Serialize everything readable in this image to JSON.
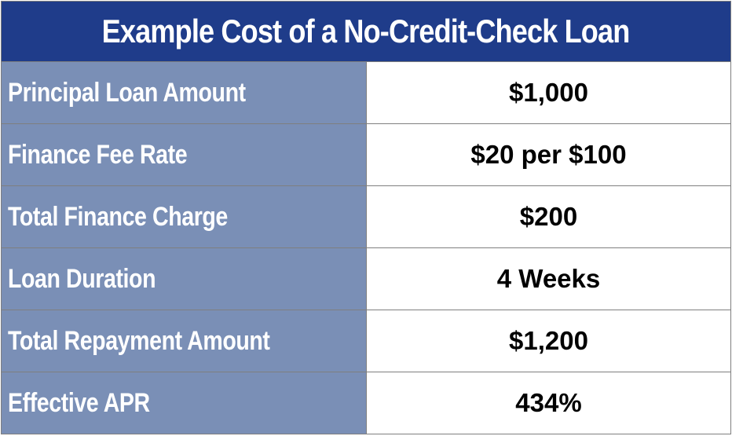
{
  "title": "Example Cost of a No-Credit-Check Loan",
  "rows": [
    {
      "label": "Principal Loan Amount",
      "value": "$1,000"
    },
    {
      "label": "Finance Fee Rate",
      "value": "$20 per $100"
    },
    {
      "label": "Total Finance Charge",
      "value": "$200"
    },
    {
      "label": "Loan Duration",
      "value": "4 Weeks"
    },
    {
      "label": "Total Repayment Amount",
      "value": "$1,200"
    },
    {
      "label": "Effective APR",
      "value": "434%"
    }
  ],
  "colors": {
    "header_bg": "#1f3c8a",
    "label_bg": "#7a8fb6",
    "value_bg": "#ffffff",
    "border": "#7f7f7f"
  }
}
